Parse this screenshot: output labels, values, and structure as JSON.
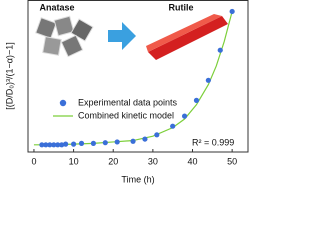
{
  "chart_data": {
    "type": "scatter",
    "x_label": "Time (h)",
    "y_label": "[(D/D₀)³/(1−α)−1]",
    "annotations": [
      "Anatase",
      "Rutile",
      "R² = 0.999"
    ],
    "xlim": [
      -1.5,
      54
    ],
    "ylim": [
      -0.03,
      1.03
    ],
    "xticks": [
      0,
      10,
      20,
      30,
      40,
      50
    ],
    "series": [
      {
        "name": "Experimental data points",
        "color": "#3a6fd8",
        "kind": "points",
        "x": [
          2,
          3,
          4,
          5,
          6,
          7,
          8,
          10,
          12,
          15,
          18,
          21,
          25,
          28,
          31,
          35,
          38,
          41,
          44,
          47,
          50
        ],
        "values": [
          0.02,
          0.02,
          0.02,
          0.02,
          0.02,
          0.02,
          0.025,
          0.025,
          0.03,
          0.03,
          0.035,
          0.04,
          0.045,
          0.06,
          0.09,
          0.15,
          0.22,
          0.33,
          0.47,
          0.68,
          0.95
        ]
      },
      {
        "name": "Combined kinetic model",
        "color": "#7ccf3a",
        "kind": "line",
        "x": [
          0,
          5,
          10,
          15,
          20,
          25,
          30,
          35,
          38,
          41,
          44,
          46,
          48,
          50
        ],
        "values": [
          0.02,
          0.02,
          0.025,
          0.03,
          0.04,
          0.05,
          0.08,
          0.14,
          0.2,
          0.3,
          0.44,
          0.57,
          0.74,
          0.95
        ]
      }
    ]
  }
}
